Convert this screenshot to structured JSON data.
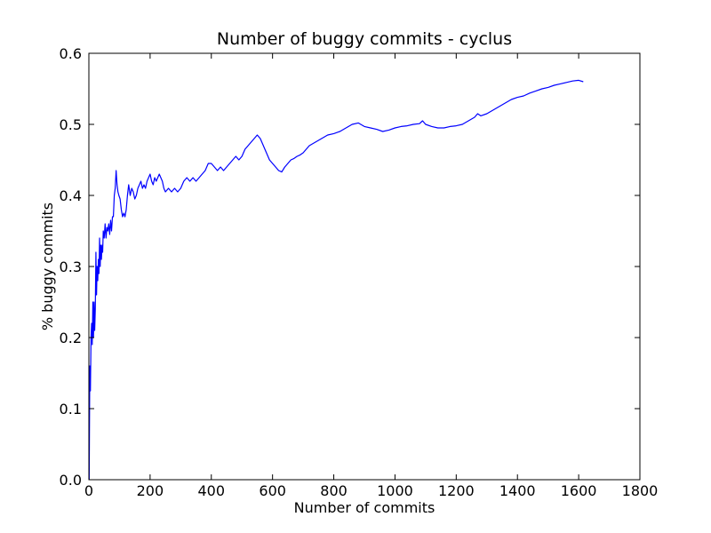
{
  "chart_data": {
    "type": "line",
    "title": "Number of buggy commits - cyclus",
    "xlabel": "Number of commits",
    "ylabel": "% buggy commits",
    "xlim": [
      0,
      1800
    ],
    "ylim": [
      0.0,
      0.6
    ],
    "xticks": [
      0,
      200,
      400,
      600,
      800,
      1000,
      1200,
      1400,
      1600,
      1800
    ],
    "yticks": [
      0.0,
      0.1,
      0.2,
      0.3,
      0.4,
      0.5,
      0.6
    ],
    "ytick_labels": [
      "0.0",
      "0.1",
      "0.2",
      "0.3",
      "0.4",
      "0.5",
      "0.6"
    ],
    "grid": false,
    "legend": "none",
    "series": [
      {
        "color": "#0000ff",
        "x": [
          1,
          3,
          5,
          7,
          9,
          11,
          13,
          15,
          17,
          19,
          21,
          23,
          25,
          27,
          29,
          31,
          33,
          35,
          37,
          39,
          41,
          43,
          45,
          47,
          50,
          53,
          56,
          59,
          62,
          65,
          68,
          71,
          74,
          77,
          80,
          83,
          86,
          89,
          92,
          95,
          98,
          102,
          106,
          110,
          114,
          118,
          122,
          126,
          130,
          135,
          140,
          145,
          150,
          155,
          160,
          165,
          170,
          175,
          180,
          185,
          190,
          195,
          200,
          205,
          210,
          215,
          220,
          225,
          230,
          235,
          240,
          245,
          250,
          260,
          270,
          280,
          290,
          300,
          310,
          320,
          330,
          340,
          350,
          360,
          370,
          380,
          390,
          400,
          410,
          420,
          430,
          440,
          450,
          460,
          470,
          480,
          490,
          500,
          510,
          520,
          530,
          540,
          550,
          560,
          570,
          580,
          590,
          600,
          610,
          620,
          630,
          640,
          650,
          660,
          670,
          680,
          690,
          700,
          720,
          740,
          760,
          780,
          800,
          820,
          840,
          860,
          880,
          900,
          920,
          940,
          960,
          980,
          1000,
          1020,
          1040,
          1060,
          1080,
          1090,
          1100,
          1120,
          1140,
          1160,
          1180,
          1200,
          1220,
          1240,
          1260,
          1270,
          1280,
          1300,
          1320,
          1340,
          1360,
          1380,
          1400,
          1420,
          1440,
          1460,
          1480,
          1500,
          1520,
          1540,
          1560,
          1580,
          1600,
          1615
        ],
        "y": [
          0.0,
          0.16,
          0.125,
          0.2,
          0.22,
          0.19,
          0.25,
          0.2,
          0.25,
          0.21,
          0.24,
          0.32,
          0.26,
          0.3,
          0.28,
          0.31,
          0.29,
          0.34,
          0.3,
          0.33,
          0.31,
          0.33,
          0.32,
          0.35,
          0.34,
          0.36,
          0.34,
          0.355,
          0.35,
          0.36,
          0.345,
          0.365,
          0.35,
          0.37,
          0.37,
          0.4,
          0.41,
          0.435,
          0.415,
          0.405,
          0.4,
          0.395,
          0.38,
          0.37,
          0.375,
          0.37,
          0.38,
          0.4,
          0.415,
          0.4,
          0.41,
          0.405,
          0.395,
          0.4,
          0.41,
          0.415,
          0.42,
          0.41,
          0.415,
          0.41,
          0.42,
          0.425,
          0.43,
          0.42,
          0.415,
          0.425,
          0.42,
          0.425,
          0.43,
          0.425,
          0.42,
          0.41,
          0.405,
          0.41,
          0.405,
          0.41,
          0.405,
          0.41,
          0.42,
          0.425,
          0.42,
          0.425,
          0.42,
          0.425,
          0.43,
          0.435,
          0.445,
          0.445,
          0.44,
          0.435,
          0.44,
          0.435,
          0.44,
          0.445,
          0.45,
          0.455,
          0.45,
          0.455,
          0.465,
          0.47,
          0.475,
          0.48,
          0.485,
          0.48,
          0.47,
          0.46,
          0.45,
          0.445,
          0.44,
          0.435,
          0.433,
          0.44,
          0.445,
          0.45,
          0.452,
          0.455,
          0.457,
          0.46,
          0.47,
          0.475,
          0.48,
          0.485,
          0.487,
          0.49,
          0.495,
          0.5,
          0.502,
          0.497,
          0.495,
          0.493,
          0.49,
          0.492,
          0.495,
          0.497,
          0.498,
          0.5,
          0.501,
          0.505,
          0.5,
          0.497,
          0.495,
          0.495,
          0.497,
          0.498,
          0.5,
          0.505,
          0.51,
          0.515,
          0.512,
          0.515,
          0.52,
          0.525,
          0.53,
          0.535,
          0.538,
          0.54,
          0.544,
          0.547,
          0.55,
          0.552,
          0.555,
          0.557,
          0.559,
          0.561,
          0.562,
          0.56
        ]
      }
    ]
  }
}
